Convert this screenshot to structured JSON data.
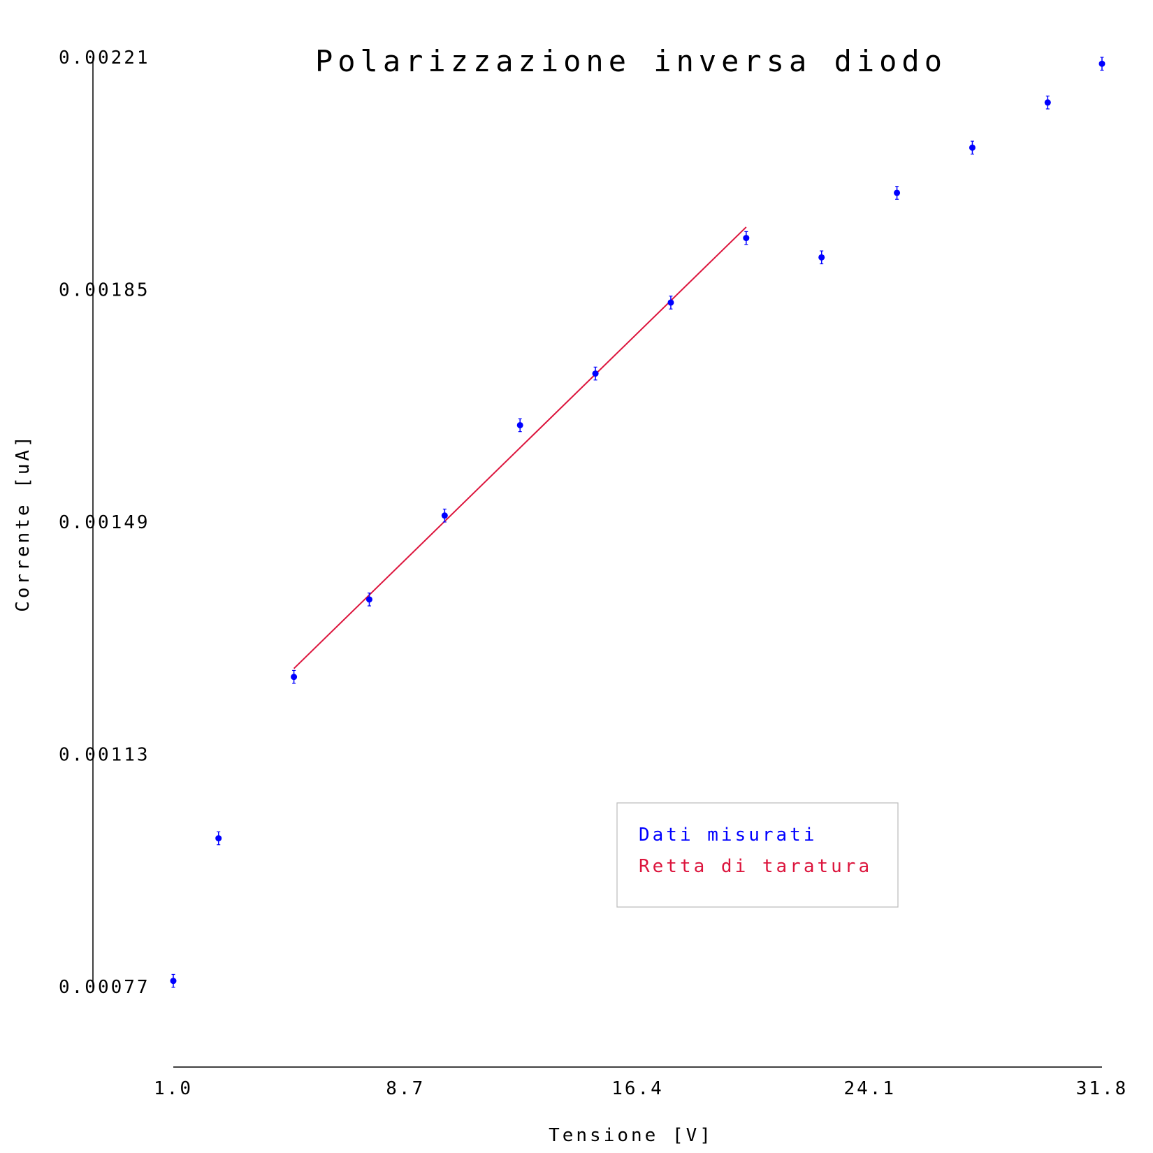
{
  "chart_data": {
    "type": "scatter",
    "title": "Polarizzazione inversa diodo",
    "xlabel": "Tensione [V]",
    "ylabel": "Corrente [uA]",
    "xlim": [
      1.0,
      31.8
    ],
    "ylim": [
      0.00077,
      0.00221
    ],
    "x_ticks": [
      "1.0",
      "8.7",
      "16.4",
      "24.1",
      "31.8"
    ],
    "y_ticks": [
      "0.00077",
      "0.00113",
      "0.00149",
      "0.00185",
      "0.00221"
    ],
    "grid": false,
    "legend_position": "bottom-right",
    "series": [
      {
        "name": "Dati misurati",
        "kind": "points_with_error_bars",
        "color": "#0000ff",
        "x": [
          1.0,
          2.5,
          5.0,
          7.5,
          10.0,
          12.5,
          15.0,
          17.5,
          20.0,
          22.5,
          25.0,
          27.5,
          30.0,
          31.8
        ],
        "y": [
          0.000779,
          0.001,
          0.00125,
          0.00137,
          0.0015,
          0.00164,
          0.00172,
          0.00183,
          0.00193,
          0.0019,
          0.002,
          0.00207,
          0.00214,
          0.0022
        ],
        "y_err": 1e-05
      },
      {
        "name": "Retta di taratura",
        "kind": "line",
        "color": "#dc143c",
        "x": [
          5.0,
          20.0
        ],
        "y": [
          0.001263,
          0.001947
        ]
      }
    ]
  }
}
